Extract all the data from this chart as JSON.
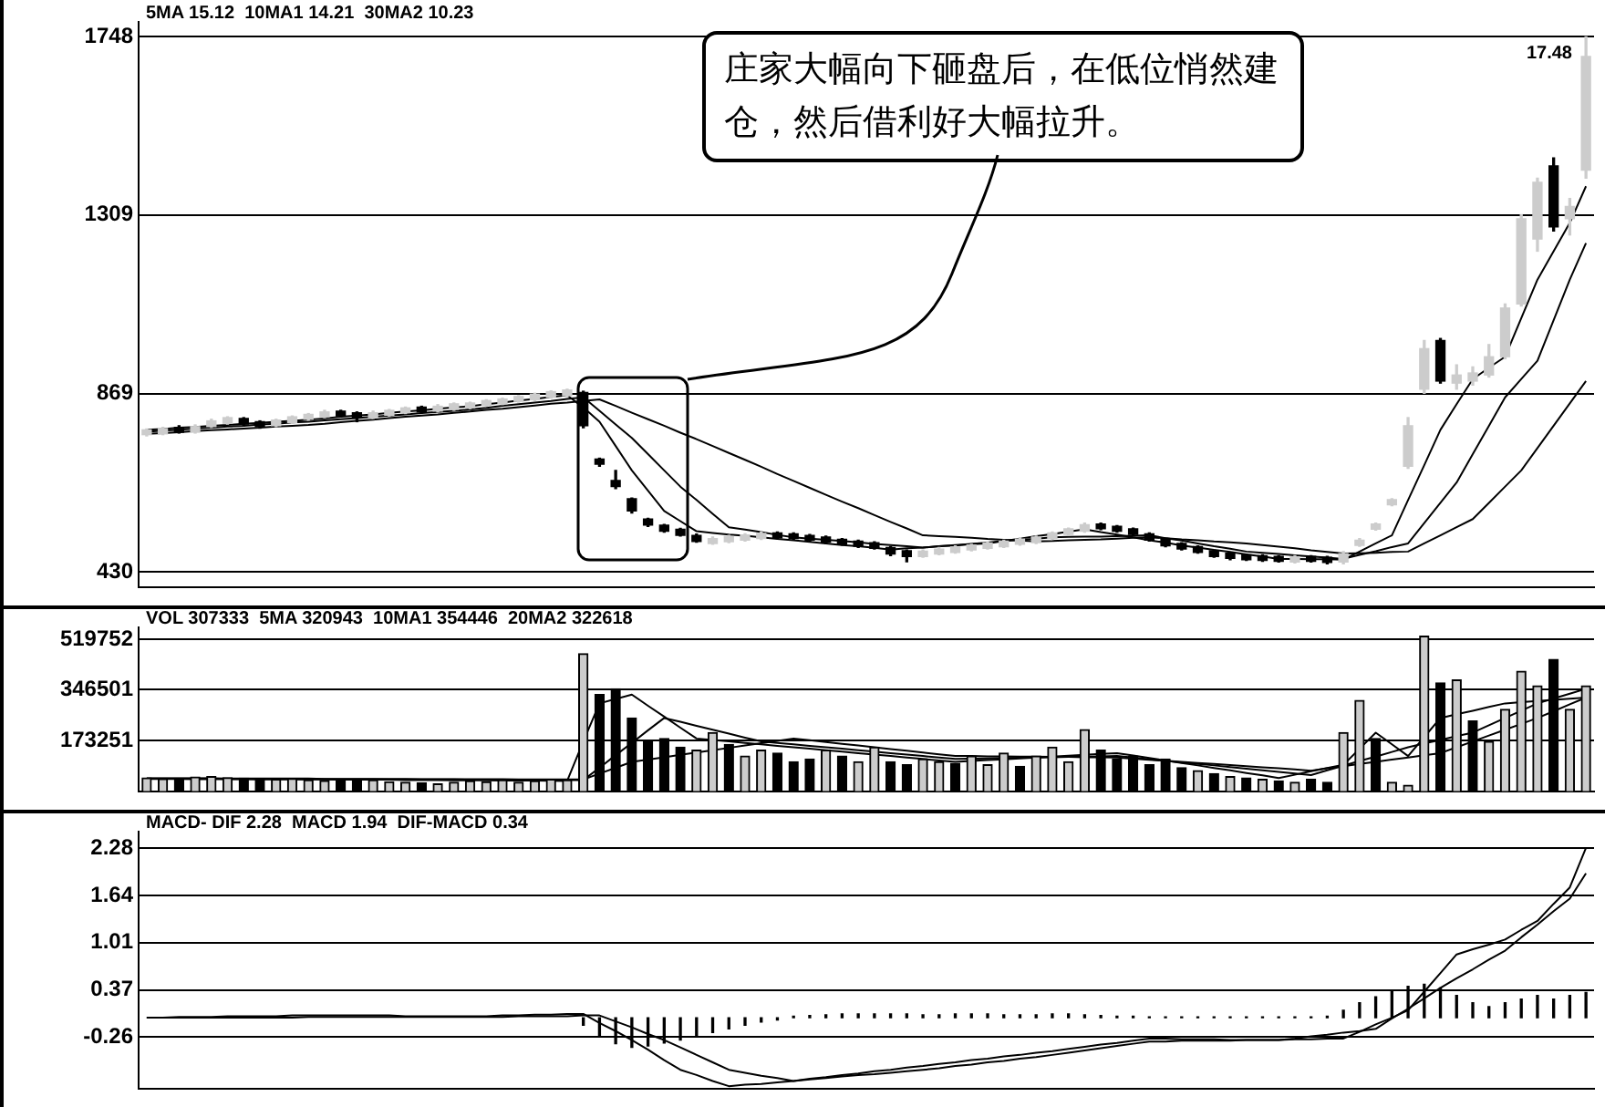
{
  "chart_data": [
    {
      "type": "candlestick",
      "annotations": [
        "5MA 15.12  10MA1 14.21  30MA2 10.23",
        "庄家大幅向下砸盘后，在低位悄然建仓，然后借利好大幅拉升。",
        "17.48"
      ],
      "categories": [
        null,
        null,
        null,
        null,
        null,
        null,
        null,
        null,
        null,
        null,
        null,
        null,
        null,
        null,
        null,
        null,
        null,
        null,
        null,
        null,
        null,
        null,
        null,
        null,
        null,
        null,
        null,
        null,
        null,
        null,
        null,
        null,
        null,
        null,
        null,
        null,
        null,
        null,
        null,
        null,
        null,
        null,
        null,
        null,
        null,
        null,
        null,
        null,
        null,
        null,
        null,
        null,
        null,
        null,
        null,
        null,
        null,
        null,
        null,
        null,
        null,
        null,
        null,
        null,
        null,
        null,
        null,
        null,
        null,
        null,
        null,
        null,
        null,
        null,
        null,
        null,
        null,
        null,
        null,
        null,
        null,
        null,
        null,
        null,
        null,
        null,
        null,
        null,
        null,
        null
      ],
      "ohlc": [
        [
          768,
          782,
          765,
          780
        ],
        [
          770,
          786,
          768,
          783
        ],
        [
          786,
          790,
          772,
          774
        ],
        [
          774,
          792,
          772,
          788
        ],
        [
          788,
          806,
          786,
          802
        ],
        [
          796,
          812,
          794,
          810
        ],
        [
          808,
          810,
          790,
          794
        ],
        [
          800,
          802,
          784,
          788
        ],
        [
          790,
          806,
          788,
          804
        ],
        [
          798,
          814,
          796,
          812
        ],
        [
          806,
          820,
          804,
          818
        ],
        [
          812,
          828,
          810,
          824
        ],
        [
          826,
          828,
          812,
          814
        ],
        [
          822,
          824,
          800,
          810
        ],
        [
          810,
          826,
          808,
          822
        ],
        [
          816,
          830,
          814,
          828
        ],
        [
          822,
          836,
          820,
          834
        ],
        [
          836,
          838,
          822,
          824
        ],
        [
          826,
          842,
          824,
          838
        ],
        [
          830,
          846,
          828,
          844
        ],
        [
          834,
          848,
          832,
          846
        ],
        [
          840,
          854,
          838,
          852
        ],
        [
          844,
          858,
          842,
          856
        ],
        [
          850,
          864,
          848,
          862
        ],
        [
          854,
          870,
          852,
          868
        ],
        [
          860,
          876,
          858,
          874
        ],
        [
          864,
          880,
          862,
          878
        ],
        [
          872,
          875,
          785,
          790
        ],
        [
          708,
          710,
          690,
          695
        ],
        [
          655,
          680,
          635,
          640
        ],
        [
          610,
          612,
          575,
          580
        ],
        [
          560,
          562,
          542,
          545
        ],
        [
          545,
          547,
          528,
          530
        ],
        [
          535,
          537,
          518,
          520
        ],
        [
          520,
          523,
          503,
          505
        ],
        [
          500,
          516,
          498,
          512
        ],
        [
          504,
          520,
          502,
          517
        ],
        [
          508,
          524,
          506,
          521
        ],
        [
          512,
          528,
          510,
          525
        ],
        [
          526,
          528,
          512,
          514
        ],
        [
          524,
          526,
          510,
          512
        ],
        [
          520,
          522,
          506,
          508
        ],
        [
          516,
          518,
          500,
          503
        ],
        [
          510,
          512,
          496,
          498
        ],
        [
          506,
          508,
          490,
          493
        ],
        [
          502,
          504,
          486,
          488
        ],
        [
          490,
          492,
          470,
          474
        ],
        [
          482,
          484,
          455,
          468
        ],
        [
          468,
          484,
          466,
          481
        ],
        [
          474,
          490,
          472,
          486
        ],
        [
          478,
          494,
          476,
          491
        ],
        [
          484,
          498,
          482,
          496
        ],
        [
          488,
          504,
          486,
          501
        ],
        [
          492,
          508,
          490,
          506
        ],
        [
          498,
          514,
          496,
          511
        ],
        [
          502,
          518,
          500,
          516
        ],
        [
          512,
          528,
          510,
          526
        ],
        [
          522,
          538,
          520,
          536
        ],
        [
          530,
          550,
          528,
          546
        ],
        [
          548,
          550,
          534,
          536
        ],
        [
          542,
          544,
          528,
          530
        ],
        [
          536,
          538,
          520,
          522
        ],
        [
          524,
          526,
          506,
          508
        ],
        [
          510,
          512,
          492,
          494
        ],
        [
          500,
          502,
          484,
          486
        ],
        [
          492,
          494,
          476,
          478
        ],
        [
          482,
          484,
          466,
          468
        ],
        [
          476,
          478,
          460,
          463
        ],
        [
          472,
          474,
          458,
          460
        ],
        [
          470,
          472,
          456,
          458
        ],
        [
          468,
          470,
          454,
          456
        ],
        [
          454,
          470,
          452,
          467
        ],
        [
          468,
          470,
          454,
          456
        ],
        [
          466,
          468,
          450,
          453
        ],
        [
          454,
          480,
          450,
          475
        ],
        [
          495,
          512,
          493,
          508
        ],
        [
          535,
          550,
          533,
          548
        ],
        [
          595,
          610,
          593,
          608
        ],
        [
          690,
          810,
          685,
          790
        ],
        [
          880,
          1000,
          870,
          980
        ],
        [
          1000,
          1005,
          895,
          900
        ],
        [
          895,
          940,
          880,
          915
        ],
        [
          900,
          935,
          890,
          920
        ],
        [
          915,
          990,
          910,
          960
        ],
        [
          960,
          1090,
          955,
          1080
        ],
        [
          1090,
          1310,
          1085,
          1300
        ],
        [
          1250,
          1400,
          1220,
          1390
        ],
        [
          1430,
          1450,
          1270,
          1280
        ],
        [
          1300,
          1350,
          1260,
          1330
        ],
        [
          1420,
          1748,
          1400,
          1700
        ]
      ],
      "colors": [
        "#cccccc",
        "#cccccc",
        "#000000",
        "#cccccc",
        "#cccccc",
        "#cccccc",
        "#000000",
        "#000000",
        "#cccccc",
        "#cccccc",
        "#cccccc",
        "#cccccc",
        "#000000",
        "#000000",
        "#cccccc",
        "#cccccc",
        "#cccccc",
        "#000000",
        "#cccccc",
        "#cccccc",
        "#cccccc",
        "#cccccc",
        "#cccccc",
        "#cccccc",
        "#cccccc",
        "#cccccc",
        "#cccccc",
        "#000000",
        "#000000",
        "#000000",
        "#000000",
        "#000000",
        "#000000",
        "#000000",
        "#000000",
        "#cccccc",
        "#cccccc",
        "#cccccc",
        "#cccccc",
        "#000000",
        "#000000",
        "#000000",
        "#000000",
        "#000000",
        "#000000",
        "#000000",
        "#000000",
        "#000000",
        "#cccccc",
        "#cccccc",
        "#cccccc",
        "#cccccc",
        "#cccccc",
        "#cccccc",
        "#cccccc",
        "#cccccc",
        "#cccccc",
        "#cccccc",
        "#cccccc",
        "#000000",
        "#000000",
        "#000000",
        "#000000",
        "#000000",
        "#000000",
        "#000000",
        "#000000",
        "#000000",
        "#000000",
        "#000000",
        "#000000",
        "#cccccc",
        "#000000",
        "#000000",
        "#cccccc",
        "#cccccc",
        "#cccccc",
        "#cccccc",
        "#cccccc",
        "#cccccc",
        "#000000",
        "#cccccc",
        "#cccccc",
        "#cccccc",
        "#cccccc",
        "#cccccc",
        "#cccccc",
        "#000000",
        "#cccccc",
        "#cccccc"
      ],
      "series": [
        {
          "type": "line",
          "color": "#000000",
          "values": [
            780,
            782,
            785,
            787,
            790,
            792,
            795,
            797,
            800,
            802,
            805,
            808,
            812,
            815,
            818,
            822,
            825,
            828,
            832,
            835,
            838,
            843,
            847,
            852,
            856,
            861,
            865,
            835,
            800,
            740,
            680,
            630,
            580,
            555,
            530,
            526,
            522,
            519,
            515,
            511,
            508,
            504,
            500,
            496,
            493,
            489,
            485,
            488,
            490,
            493,
            495,
            498,
            500,
            506,
            512,
            518,
            523,
            529,
            535,
            528,
            522,
            515,
            508,
            502,
            495,
            490,
            484,
            479,
            473,
            468,
            462,
            462,
            461,
            461,
            460,
            480,
            500,
            520,
            607,
            693,
            780,
            843,
            905,
            933,
            960,
            1055,
            1150,
            1220,
            1290,
            1380
          ]
        },
        {
          "type": "line",
          "color": "#000000",
          "values": [
            775,
            778,
            780,
            783,
            785,
            788,
            790,
            793,
            795,
            798,
            800,
            803,
            806,
            809,
            812,
            815,
            818,
            821,
            824,
            827,
            830,
            834,
            839,
            843,
            847,
            851,
            856,
            860,
            827,
            793,
            760,
            720,
            680,
            640,
            607,
            573,
            540,
            534,
            528,
            521,
            515,
            512,
            509,
            506,
            503,
            499,
            496,
            493,
            490,
            493,
            496,
            499,
            502,
            506,
            509,
            512,
            515,
            516,
            517,
            517,
            518,
            519,
            520,
            513,
            507,
            500,
            493,
            487,
            480,
            477,
            474,
            471,
            468,
            465,
            462,
            472,
            481,
            491,
            500,
            550,
            600,
            650,
            720,
            790,
            860,
            905,
            950,
            1050,
            1150,
            1240
          ]
        },
        {
          "type": "line",
          "color": "#000000",
          "values": [
            770,
            772,
            774,
            777,
            779,
            781,
            783,
            785,
            788,
            790,
            792,
            795,
            799,
            802,
            805,
            809,
            812,
            815,
            818,
            822,
            825,
            829,
            832,
            836,
            840,
            844,
            847,
            851,
            855,
            839,
            822,
            806,
            790,
            773,
            757,
            740,
            723,
            706,
            689,
            671,
            654,
            637,
            620,
            603,
            587,
            570,
            553,
            537,
            520,
            518,
            516,
            514,
            511,
            509,
            507,
            505,
            506,
            508,
            509,
            510,
            512,
            514,
            515,
            513,
            510,
            508,
            505,
            503,
            500,
            496,
            492,
            488,
            483,
            479,
            475,
            476,
            477,
            479,
            480,
            500,
            520,
            540,
            560,
            600,
            640,
            680,
            735,
            790,
            845,
            900
          ]
        }
      ],
      "ylim": [
        393,
        1785
      ],
      "yticks": [
        430,
        869,
        1309,
        1748
      ],
      "tick_labels": "y",
      "grid": "y",
      "legend": false
    },
    {
      "type": "bar",
      "annotations": [
        "VOL 307333  5MA 320943  10MA1 354446  20MA2 322618"
      ],
      "categories": [
        null,
        null,
        null,
        null,
        null,
        null,
        null,
        null,
        null,
        null,
        null,
        null,
        null,
        null,
        null,
        null,
        null,
        null,
        null,
        null,
        null,
        null,
        null,
        null,
        null,
        null,
        null,
        null,
        null,
        null,
        null,
        null,
        null,
        null,
        null,
        null,
        null,
        null,
        null,
        null,
        null,
        null,
        null,
        null,
        null,
        null,
        null,
        null,
        null,
        null,
        null,
        null,
        null,
        null,
        null,
        null,
        null,
        null,
        null,
        null,
        null,
        null,
        null,
        null,
        null,
        null,
        null,
        null,
        null,
        null,
        null,
        null,
        null,
        null,
        null,
        null,
        null,
        null,
        null,
        null,
        null,
        null,
        null,
        null,
        null,
        null,
        null,
        null,
        null,
        null
      ],
      "series": [
        {
          "type": "bar",
          "values": [
            45000,
            42000,
            40000,
            48000,
            50000,
            46000,
            44000,
            42000,
            40000,
            43000,
            38000,
            36000,
            35000,
            40000,
            38000,
            32000,
            30000,
            28000,
            25000,
            30000,
            35000,
            32000,
            38000,
            30000,
            35000,
            40000,
            38000,
            470000,
            330000,
            350000,
            250000,
            170000,
            180000,
            150000,
            140000,
            200000,
            160000,
            120000,
            140000,
            130000,
            100000,
            110000,
            140000,
            120000,
            100000,
            150000,
            100000,
            90000,
            110000,
            100000,
            95000,
            120000,
            90000,
            130000,
            85000,
            120000,
            150000,
            100000,
            210000,
            140000,
            110000,
            120000,
            90000,
            110000,
            80000,
            70000,
            60000,
            50000,
            45000,
            40000,
            35000,
            30000,
            40000,
            30000,
            200000,
            310000,
            180000,
            30000,
            20000,
            530000,
            370000,
            380000,
            240000,
            170000,
            280000,
            410000,
            360000,
            450000,
            280000,
            360000
          ],
          "colors": [
            "#cccccc",
            "#cccccc",
            "#000000",
            "#cccccc",
            "#cccccc",
            "#cccccc",
            "#000000",
            "#000000",
            "#cccccc",
            "#cccccc",
            "#cccccc",
            "#cccccc",
            "#000000",
            "#000000",
            "#cccccc",
            "#cccccc",
            "#cccccc",
            "#000000",
            "#cccccc",
            "#cccccc",
            "#cccccc",
            "#cccccc",
            "#cccccc",
            "#cccccc",
            "#cccccc",
            "#cccccc",
            "#cccccc",
            "#cccccc",
            "#000000",
            "#000000",
            "#000000",
            "#000000",
            "#000000",
            "#000000",
            "#cccccc",
            "#cccccc",
            "#000000",
            "#cccccc",
            "#cccccc",
            "#000000",
            "#000000",
            "#000000",
            "#cccccc",
            "#000000",
            "#cccccc",
            "#cccccc",
            "#000000",
            "#000000",
            "#cccccc",
            "#cccccc",
            "#000000",
            "#cccccc",
            "#cccccc",
            "#cccccc",
            "#000000",
            "#cccccc",
            "#cccccc",
            "#cccccc",
            "#cccccc",
            "#000000",
            "#000000",
            "#000000",
            "#000000",
            "#000000",
            "#000000",
            "#cccccc",
            "#000000",
            "#cccccc",
            "#000000",
            "#cccccc",
            "#000000",
            "#cccccc",
            "#000000",
            "#000000",
            "#cccccc",
            "#cccccc",
            "#000000",
            "#cccccc",
            "#cccccc",
            "#cccccc",
            "#000000",
            "#cccccc",
            "#000000",
            "#cccccc",
            "#cccccc",
            "#cccccc",
            "#cccccc",
            "#000000",
            "#cccccc",
            "#cccccc"
          ]
        },
        {
          "type": "line",
          "color": "#000000",
          "values": [
            42000,
            42000,
            42000,
            41000,
            41000,
            41000,
            41000,
            40000,
            40000,
            40000,
            40000,
            40000,
            39000,
            39000,
            39000,
            39000,
            38000,
            38000,
            38000,
            37000,
            37000,
            37000,
            36000,
            36000,
            36000,
            35000,
            35000,
            170000,
            300000,
            315000,
            330000,
            292000,
            255000,
            217000,
            180000,
            175000,
            170000,
            165000,
            160000,
            155000,
            150000,
            145000,
            140000,
            135000,
            130000,
            125000,
            120000,
            115000,
            110000,
            105000,
            100000,
            103000,
            106000,
            109000,
            112000,
            115000,
            118000,
            121000,
            124000,
            127000,
            130000,
            122000,
            113000,
            105000,
            96000,
            88000,
            79000,
            71000,
            62000,
            54000,
            45000,
            56000,
            68000,
            79000,
            90000,
            145000,
            200000,
            160000,
            120000,
            185000,
            250000,
            263000,
            275000,
            288000,
            300000,
            304000,
            308000,
            312000,
            316000,
            320000
          ]
        },
        {
          "type": "line",
          "color": "#000000",
          "values": [
            43000,
            43000,
            43000,
            43000,
            43000,
            42000,
            42000,
            42000,
            42000,
            42000,
            41000,
            41000,
            41000,
            41000,
            41000,
            40000,
            40000,
            40000,
            40000,
            40000,
            39000,
            39000,
            39000,
            39000,
            39000,
            38000,
            38000,
            38000,
            80000,
            123000,
            165000,
            208000,
            250000,
            237000,
            223000,
            210000,
            197000,
            183000,
            170000,
            165000,
            160000,
            155000,
            150000,
            145000,
            140000,
            135000,
            130000,
            125000,
            120000,
            115000,
            110000,
            111000,
            112000,
            113000,
            114000,
            115000,
            116000,
            117000,
            118000,
            119000,
            120000,
            115000,
            109000,
            104000,
            98000,
            93000,
            88000,
            82000,
            77000,
            71000,
            66000,
            60000,
            55000,
            71000,
            87000,
            103000,
            118000,
            134000,
            150000,
            163000,
            175000,
            188000,
            200000,
            225000,
            250000,
            275000,
            300000,
            317000,
            333000,
            350000
          ]
        },
        {
          "type": "line",
          "color": "#000000",
          "values": [
            44000,
            44000,
            44000,
            44000,
            44000,
            43000,
            43000,
            43000,
            43000,
            43000,
            43000,
            42000,
            42000,
            42000,
            42000,
            42000,
            42000,
            41000,
            41000,
            41000,
            41000,
            41000,
            41000,
            40000,
            40000,
            40000,
            40000,
            40000,
            60000,
            80000,
            100000,
            108000,
            116000,
            124000,
            132000,
            140000,
            148000,
            156000,
            164000,
            172000,
            180000,
            174000,
            168000,
            162000,
            156000,
            150000,
            144000,
            138000,
            132000,
            126000,
            120000,
            120000,
            119000,
            119000,
            118000,
            118000,
            117000,
            117000,
            116000,
            116000,
            115000,
            111000,
            107000,
            104000,
            100000,
            96000,
            93000,
            89000,
            85000,
            81000,
            78000,
            74000,
            70000,
            78000,
            85000,
            93000,
            100000,
            108000,
            115000,
            123000,
            130000,
            150000,
            170000,
            190000,
            210000,
            230000,
            250000,
            273000,
            297000,
            320000
          ]
        }
      ],
      "ylim": [
        0,
        560000
      ],
      "yticks": [
        173251,
        346501,
        519752
      ],
      "tick_labels": "y",
      "grid": "y",
      "legend": false
    },
    {
      "type": "line",
      "annotations": [
        "MACD- DIF 2.28  MACD 1.94  DIF-MACD 0.34"
      ],
      "categories": [
        null,
        null,
        null,
        null,
        null,
        null,
        null,
        null,
        null,
        null,
        null,
        null,
        null,
        null,
        null,
        null,
        null,
        null,
        null,
        null,
        null,
        null,
        null,
        null,
        null,
        null,
        null,
        null,
        null,
        null,
        null,
        null,
        null,
        null,
        null,
        null,
        null,
        null,
        null,
        null,
        null,
        null,
        null,
        null,
        null,
        null,
        null,
        null,
        null,
        null,
        null,
        null,
        null,
        null,
        null,
        null,
        null,
        null,
        null,
        null,
        null,
        null,
        null,
        null,
        null,
        null,
        null,
        null,
        null,
        null,
        null,
        null,
        null,
        null,
        null,
        null,
        null,
        null,
        null,
        null,
        null,
        null,
        null,
        null,
        null,
        null,
        null,
        null,
        null,
        null
      ],
      "series": [
        {
          "type": "line",
          "color": "#000000",
          "values": [
            0,
            0,
            0.01,
            0.01,
            0.01,
            0.02,
            0.02,
            0.02,
            0.02,
            0.03,
            0.03,
            0.03,
            0.03,
            0.03,
            0.03,
            0.03,
            0.02,
            0.02,
            0.02,
            0.02,
            0.02,
            0.02,
            0.03,
            0.03,
            0.04,
            0.04,
            0.05,
            0.05,
            -0.07,
            -0.18,
            -0.3,
            -0.43,
            -0.57,
            -0.7,
            -0.77,
            -0.85,
            -0.92,
            -0.9,
            -0.89,
            -0.87,
            -0.85,
            -0.82,
            -0.8,
            -0.77,
            -0.75,
            -0.72,
            -0.7,
            -0.67,
            -0.65,
            -0.62,
            -0.6,
            -0.57,
            -0.55,
            -0.52,
            -0.5,
            -0.47,
            -0.45,
            -0.42,
            -0.39,
            -0.36,
            -0.34,
            -0.31,
            -0.28,
            -0.28,
            -0.29,
            -0.29,
            -0.29,
            -0.3,
            -0.3,
            -0.3,
            -0.3,
            -0.29,
            -0.29,
            -0.28,
            -0.28,
            -0.19,
            -0.09,
            0,
            0.1,
            0.35,
            0.6,
            0.85,
            0.92,
            0.98,
            1.05,
            1.18,
            1.3,
            1.53,
            1.75,
            2.28
          ]
        },
        {
          "type": "line",
          "color": "#000000",
          "values": [
            0,
            0,
            0,
            0,
            0,
            0,
            0,
            0,
            0,
            0,
            0.01,
            0.01,
            0.01,
            0.01,
            0.01,
            0.01,
            0.01,
            0.01,
            0.01,
            0.01,
            0.01,
            0.01,
            0.01,
            0.02,
            0.02,
            0.02,
            0.02,
            0.03,
            0.03,
            -0.05,
            -0.13,
            -0.22,
            -0.3,
            -0.4,
            -0.5,
            -0.6,
            -0.7,
            -0.74,
            -0.78,
            -0.81,
            -0.85,
            -0.83,
            -0.81,
            -0.79,
            -0.77,
            -0.76,
            -0.74,
            -0.72,
            -0.7,
            -0.68,
            -0.65,
            -0.63,
            -0.6,
            -0.58,
            -0.55,
            -0.53,
            -0.5,
            -0.47,
            -0.44,
            -0.41,
            -0.38,
            -0.35,
            -0.32,
            -0.32,
            -0.31,
            -0.31,
            -0.31,
            -0.31,
            -0.3,
            -0.3,
            -0.3,
            -0.28,
            -0.25,
            -0.23,
            -0.2,
            -0.18,
            -0.15,
            -0.01,
            0.12,
            0.26,
            0.4,
            0.53,
            0.65,
            0.78,
            0.9,
            1.08,
            1.25,
            1.43,
            1.6,
            1.94
          ]
        },
        {
          "type": "bar",
          "color": "#000000",
          "values": [
            null,
            null,
            null,
            null,
            null,
            null,
            null,
            null,
            null,
            null,
            null,
            null,
            null,
            null,
            null,
            null,
            null,
            null,
            null,
            null,
            null,
            null,
            null,
            null,
            null,
            null,
            null,
            -0.1,
            -0.25,
            -0.35,
            -0.4,
            -0.38,
            -0.34,
            -0.3,
            -0.25,
            -0.2,
            -0.15,
            -0.1,
            -0.06,
            -0.03,
            0.02,
            0.03,
            0.04,
            0.05,
            0.05,
            0.05,
            0.05,
            0.05,
            0.04,
            0.04,
            0.05,
            0.05,
            0.05,
            0.04,
            0.04,
            0.04,
            0.05,
            0.05,
            0.04,
            0.03,
            0.02,
            0.02,
            0.01,
            0.01,
            0.01,
            0.01,
            0.01,
            0.01,
            0.01,
            0.01,
            0.01,
            0.01,
            0.01,
            0.02,
            0.1,
            0.2,
            0.28,
            0.35,
            0.42,
            0.45,
            0.4,
            0.3,
            0.2,
            0.15,
            0.2,
            0.25,
            0.3,
            0.25,
            0.3,
            0.34
          ]
        }
      ],
      "ylim": [
        -0.95,
        2.5
      ],
      "yticks": [
        -0.26,
        0.37,
        1.01,
        1.64,
        2.28
      ],
      "tick_labels": "y",
      "grid": "y",
      "legend": false
    }
  ]
}
